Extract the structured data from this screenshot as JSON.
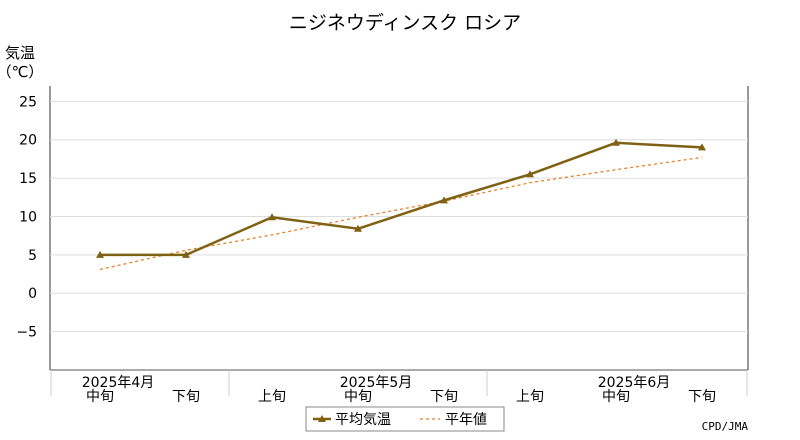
{
  "chart_data": {
    "type": "line",
    "title": "ニジネウディンスク ロシア",
    "ylabel": [
      "気温",
      "（℃）"
    ],
    "ylim": [
      -10,
      27
    ],
    "yticks": [
      -5,
      0,
      5,
      10,
      15,
      20,
      25
    ],
    "grid": true,
    "legend_placement": "bottom-center",
    "categories": [
      "中旬",
      "下旬",
      "上旬",
      "中旬",
      "下旬",
      "上旬",
      "中旬",
      "下旬"
    ],
    "month_labels": [
      {
        "label": "2025年4月",
        "category_index": 0
      },
      {
        "label": "2025年5月",
        "category_index": 3
      },
      {
        "label": "2025年6月",
        "category_index": 6
      }
    ],
    "series": [
      {
        "name": "平均気温",
        "style": "solid-triangle-marker",
        "color": "#7f6113",
        "values": [
          5.0,
          5.0,
          9.9,
          8.4,
          12.1,
          15.5,
          19.6,
          19.0
        ]
      },
      {
        "name": "平年値",
        "style": "dotted",
        "color": "#e8822c",
        "values": [
          3.1,
          5.6,
          7.6,
          9.9,
          12.0,
          14.4,
          16.1,
          17.7
        ]
      }
    ],
    "credit": "CPD/JMA"
  }
}
